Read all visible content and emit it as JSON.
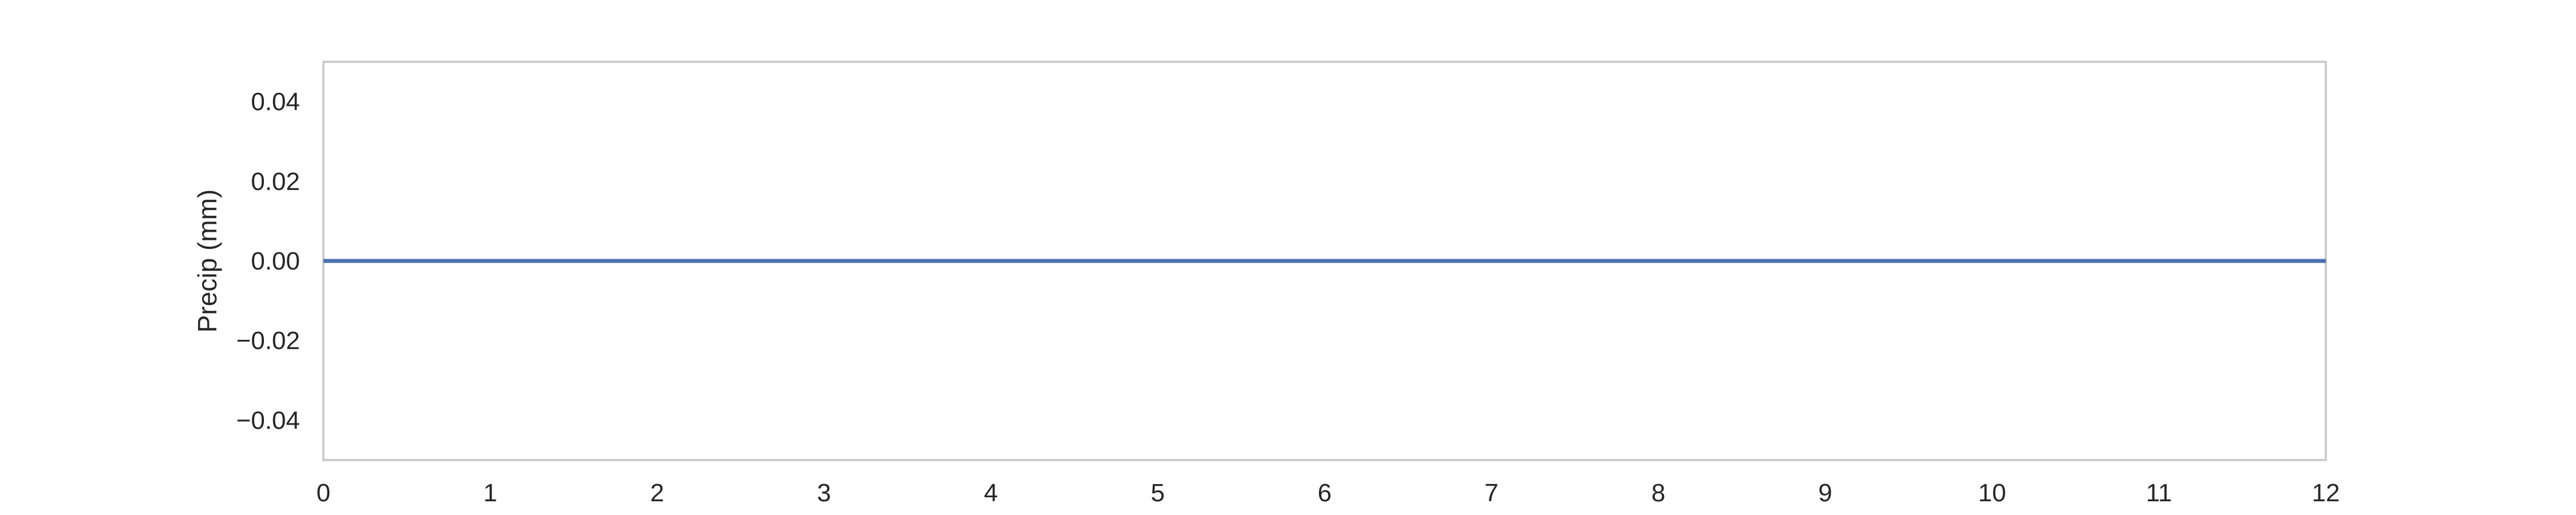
{
  "chart_data": {
    "type": "line",
    "title": "",
    "xlabel": "",
    "ylabel": "Precip (mm)",
    "x": [
      0,
      1,
      2,
      3,
      4,
      5,
      6,
      7,
      8,
      9,
      10,
      11,
      12
    ],
    "series": [
      {
        "values": [
          0,
          0,
          0,
          0,
          0,
          0,
          0,
          0,
          0,
          0,
          0,
          0,
          0
        ],
        "color": "#4c72b0"
      }
    ],
    "xlim": [
      0,
      12
    ],
    "ylim": [
      -0.05,
      0.05
    ],
    "xticks": [
      "0",
      "1",
      "2",
      "3",
      "4",
      "5",
      "6",
      "7",
      "8",
      "9",
      "10",
      "11",
      "12"
    ],
    "yticks": [
      "0.04",
      "0.02",
      "0.00",
      "−0.02",
      "−0.04"
    ],
    "ytick_values": [
      0.04,
      0.02,
      0.0,
      -0.02,
      -0.04
    ],
    "grid": false,
    "frame_color": "#cccccc"
  }
}
